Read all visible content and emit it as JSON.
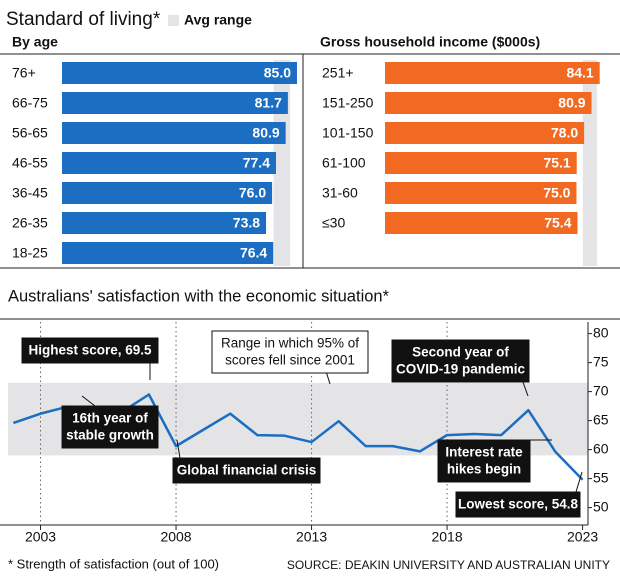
{
  "title": "Standard of living*",
  "legend_label": "Avg range",
  "chart_data": [
    {
      "type": "bar",
      "title": "By age",
      "categories": [
        "76+",
        "66-75",
        "56-65",
        "46-55",
        "36-45",
        "26-35",
        "18-25"
      ],
      "values": [
        85.0,
        81.7,
        80.9,
        77.4,
        76.0,
        73.8,
        76.4
      ],
      "value_labels": [
        "85.0",
        "81.7",
        "80.9",
        "77.4",
        "76.0",
        "73.8",
        "76.4"
      ],
      "color": "#1b6ec2",
      "xlim": [
        0,
        85
      ],
      "avg_range": [
        76.5,
        82.5
      ],
      "avg_range_color": "#e4e4e6"
    },
    {
      "type": "bar",
      "title": "Gross household income ($000s)",
      "categories": [
        "251+",
        "151-250",
        "101-150",
        "61-100",
        "31-60",
        "≤30"
      ],
      "values": [
        84.1,
        80.9,
        78.0,
        75.1,
        75.0,
        75.4
      ],
      "value_labels": [
        "84.1",
        "80.9",
        "78.0",
        "75.1",
        "75.0",
        "75.4"
      ],
      "color": "#f26a21",
      "xlim": [
        0,
        85
      ],
      "avg_range": [
        77.5,
        83.0
      ],
      "avg_range_color": "#e4e4e6"
    },
    {
      "type": "line",
      "title": "Australians' satisfaction with the economic situation*",
      "x": [
        2002,
        2003,
        2004,
        2005,
        2006,
        2007,
        2008,
        2009,
        2010,
        2011,
        2012,
        2013,
        2014,
        2015,
        2016,
        2017,
        2018,
        2019,
        2020,
        2021,
        2022,
        2023
      ],
      "values": [
        64.6,
        66.2,
        67.4,
        67.2,
        66.5,
        69.5,
        60.6,
        63.4,
        66.2,
        62.5,
        62.4,
        61.3,
        64.9,
        60.6,
        60.6,
        59.7,
        62.5,
        62.7,
        62.5,
        66.8,
        59.6,
        54.8
      ],
      "color": "#1b6ec2",
      "xlim": [
        2001.8,
        2023.2
      ],
      "ylim": [
        47,
        82
      ],
      "xticks": [
        2003,
        2008,
        2013,
        2018,
        2023
      ],
      "yticks": [
        50,
        55,
        60,
        65,
        70,
        75,
        80
      ],
      "range_band": [
        59,
        71.5
      ],
      "range_band_color": "#e4e4e6",
      "annotations": [
        {
          "lines": [
            "Highest score, 69.5"
          ]
        },
        {
          "lines": [
            "16th year of",
            "stable growth"
          ]
        },
        {
          "lines": [
            "Global financial crisis"
          ]
        },
        {
          "lines": [
            "Range in which 95% of",
            "scores fell since 2001"
          ]
        },
        {
          "lines": [
            "Second year of",
            "COVID-19 pandemic"
          ]
        },
        {
          "lines": [
            "Interest rate",
            "hikes begin"
          ]
        },
        {
          "lines": [
            "Lowest score, 54.8"
          ]
        }
      ]
    }
  ],
  "footnote": "* Strength of satisfaction (out of 100)",
  "source": "SOURCE: DEAKIN UNIVERSITY AND AUSTRALIAN UNITY"
}
